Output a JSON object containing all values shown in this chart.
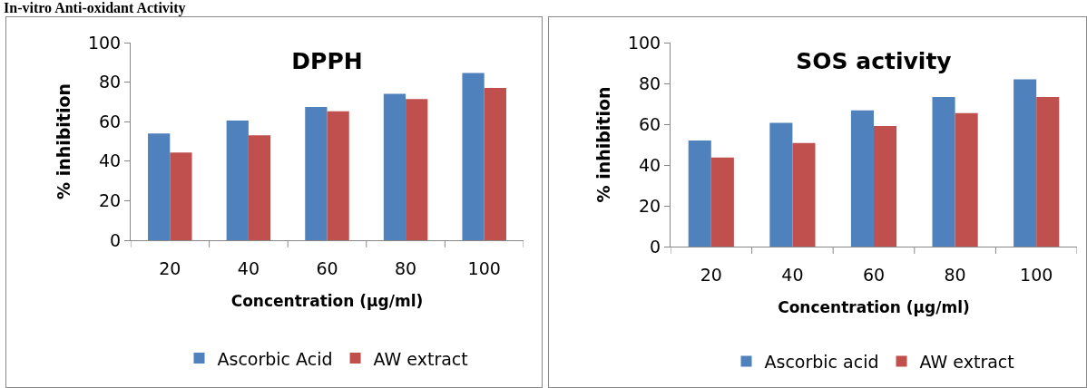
{
  "chart_data": [
    {
      "type": "bar",
      "title": "DPPH",
      "xlabel": "Concentration (µg/ml)",
      "ylabel": "% inhibition",
      "annotations": [
        "In-vitro Anti-oxidant Activity"
      ],
      "categories": [
        "20",
        "40",
        "60",
        "80",
        "100"
      ],
      "series": [
        {
          "name": "Ascorbic Acid",
          "color": "#4f81bd",
          "values": [
            54,
            60.6,
            67.4,
            74.1,
            84.6
          ]
        },
        {
          "name": "AW extract",
          "color": "#c0504d",
          "values": [
            44.4,
            53.1,
            65.2,
            71.5,
            77.1
          ]
        }
      ],
      "ylim": [
        0,
        100
      ],
      "yticks": [
        0,
        20,
        40,
        60,
        80,
        100
      ],
      "grid": false,
      "legend": "bottom"
    },
    {
      "type": "bar",
      "title": "SOS activity",
      "xlabel": "Concentration (µg/ml)",
      "ylabel": "% inhibition",
      "categories": [
        "20",
        "40",
        "60",
        "80",
        "100"
      ],
      "series": [
        {
          "name": "Ascorbic acid",
          "color": "#4f81bd",
          "values": [
            52,
            60.7,
            66.8,
            73.3,
            82
          ]
        },
        {
          "name": "AW extract",
          "color": "#c0504d",
          "values": [
            43.7,
            50.8,
            59.1,
            65.5,
            73.3
          ]
        }
      ],
      "ylim": [
        0,
        100
      ],
      "yticks": [
        0,
        20,
        40,
        60,
        80,
        100
      ],
      "grid": false,
      "legend": "bottom"
    }
  ]
}
